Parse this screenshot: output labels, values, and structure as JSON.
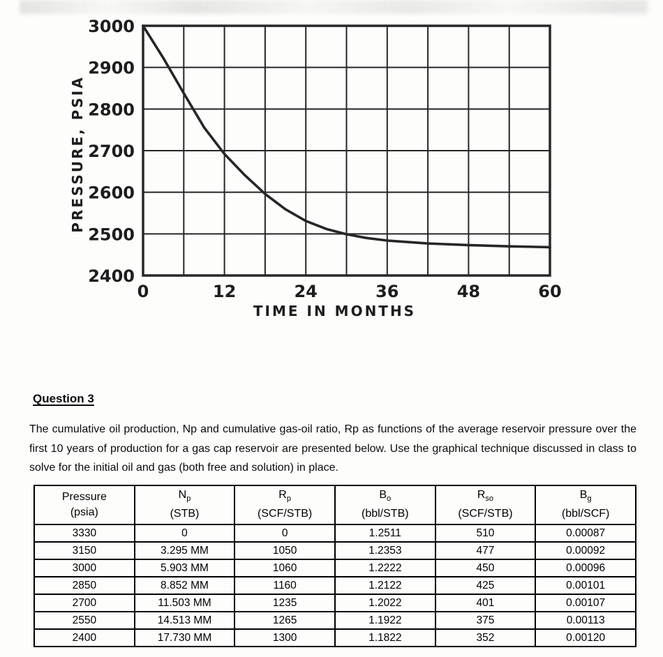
{
  "page": {
    "heading": "Question 3",
    "paragraph": "The cumulative oil production, Np and cumulative gas-oil ratio, Rp as functions of the average reservoir pressure over the first 10 years of production for a gas cap reservoir are presented below. Use the graphical technique discussed in class to solve for the initial oil and gas (both free and solution) in place."
  },
  "chart_data": {
    "type": "line",
    "title": "",
    "xlabel": "TIME IN MONTHS",
    "ylabel": "PRESSURE, PSIA",
    "xlim": [
      0,
      60
    ],
    "ylim": [
      2400,
      3000
    ],
    "x_tick_step": 6,
    "y_tick_step": 100,
    "x_label_values": [
      0,
      12,
      24,
      36,
      48,
      60
    ],
    "y_label_values": [
      2400,
      2500,
      2600,
      2700,
      2800,
      2900,
      3000
    ],
    "grid": true,
    "legend": "none",
    "ink_color": "#262626",
    "series": [
      {
        "name": "average-reservoir-pressure",
        "points": [
          [
            0,
            3000
          ],
          [
            3,
            2922
          ],
          [
            6,
            2838
          ],
          [
            9,
            2756
          ],
          [
            12,
            2692
          ],
          [
            15,
            2641
          ],
          [
            18,
            2596
          ],
          [
            21,
            2559
          ],
          [
            24,
            2531
          ],
          [
            27,
            2512
          ],
          [
            30,
            2499
          ],
          [
            33,
            2490
          ],
          [
            36,
            2484
          ],
          [
            42,
            2477
          ],
          [
            48,
            2473
          ],
          [
            54,
            2470
          ],
          [
            60,
            2468
          ]
        ]
      }
    ]
  },
  "table": {
    "columns": [
      {
        "symbol": "Pressure",
        "sub": "",
        "unit": "(psia)"
      },
      {
        "symbol": "N",
        "sub": "p",
        "unit": "(STB)"
      },
      {
        "symbol": "R",
        "sub": "p",
        "unit": "(SCF/STB)"
      },
      {
        "symbol": "B",
        "sub": "o",
        "unit": "(bbl/STB)"
      },
      {
        "symbol": "R",
        "sub": "so",
        "unit": "(SCF/STB)"
      },
      {
        "symbol": "B",
        "sub": "g",
        "unit": "(bbl/SCF)"
      }
    ],
    "rows": [
      [
        "3330",
        "0",
        "0",
        "1.2511",
        "510",
        "0.00087"
      ],
      [
        "3150",
        "3.295 MM",
        "1050",
        "1.2353",
        "477",
        "0.00092"
      ],
      [
        "3000",
        "5.903 MM",
        "1060",
        "1.2222",
        "450",
        "0.00096"
      ],
      [
        "2850",
        "8.852 MM",
        "1160",
        "1.2122",
        "425",
        "0.00101"
      ],
      [
        "2700",
        "11.503 MM",
        "1235",
        "1.2022",
        "401",
        "0.00107"
      ],
      [
        "2550",
        "14.513 MM",
        "1265",
        "1.1922",
        "375",
        "0.00113"
      ],
      [
        "2400",
        "17.730 MM",
        "1300",
        "1.1822",
        "352",
        "0.00120"
      ]
    ]
  }
}
